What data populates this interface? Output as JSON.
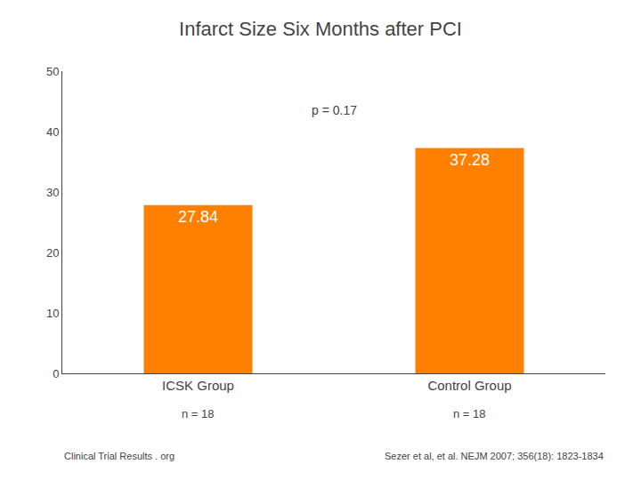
{
  "chart_data": {
    "type": "bar",
    "title": "Infarct Size Six Months after PCI",
    "categories": [
      "ICSK Group",
      "Control Group"
    ],
    "values": [
      27.84,
      37.28
    ],
    "color": "#FF8000",
    "data_labels": true,
    "ylim": [
      0,
      50
    ],
    "yticks": [
      0,
      10,
      20,
      30,
      40,
      50
    ],
    "grid": false,
    "annotations": [
      {
        "text": "p = 0.17"
      },
      {
        "text": "n = 18",
        "category": "ICSK Group"
      },
      {
        "text": "n = 18",
        "category": "Control Group"
      }
    ],
    "footnotes": [
      "Clinical Trial Results . org",
      "Sezer et al, et al. NEJM 2007; 356(18): 1823-1834"
    ]
  }
}
